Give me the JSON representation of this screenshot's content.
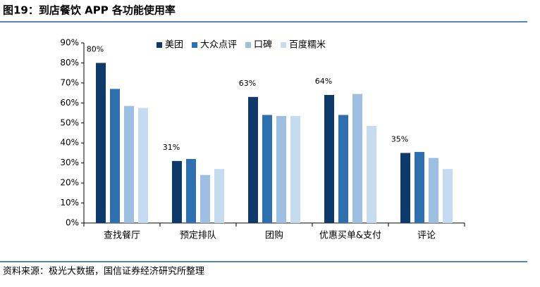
{
  "chart_data": {
    "type": "bar",
    "title": "图19：到店餐饮 APP 各功能使用率",
    "source": "资料来源：极光大数据，国信证券经济研究所整理",
    "categories": [
      "查找餐厅",
      "预定排队",
      "团购",
      "优惠买单&支付",
      "评论"
    ],
    "series": [
      {
        "name": "美团",
        "color": "#0d3a6b",
        "values": [
          80,
          31,
          63,
          64,
          35
        ],
        "value_labels": [
          "80%",
          "31%",
          "63%",
          "64%",
          "35%"
        ]
      },
      {
        "name": "大众点评",
        "color": "#2e6fb0",
        "values": [
          67,
          32,
          54,
          54,
          35.5
        ]
      },
      {
        "name": "口碑",
        "color": "#9dc0e2",
        "values": [
          58.5,
          24,
          53.5,
          64.5,
          32.5
        ]
      },
      {
        "name": "百度糯米",
        "color": "#c5dcf0",
        "values": [
          57.5,
          27,
          53.5,
          48.5,
          27
        ]
      }
    ],
    "ylim": [
      0,
      90
    ],
    "yticks": [
      {
        "value": 0,
        "label": "0%"
      },
      {
        "value": 10,
        "label": "10%"
      },
      {
        "value": 20,
        "label": "20%"
      },
      {
        "value": 30,
        "label": "30%"
      },
      {
        "value": 40,
        "label": "40%"
      },
      {
        "value": 50,
        "label": "50%"
      },
      {
        "value": 60,
        "label": "60%"
      },
      {
        "value": 70,
        "label": "70%"
      },
      {
        "value": 80,
        "label": "80%"
      },
      {
        "value": 90,
        "label": "90%"
      }
    ],
    "legend": "top"
  }
}
